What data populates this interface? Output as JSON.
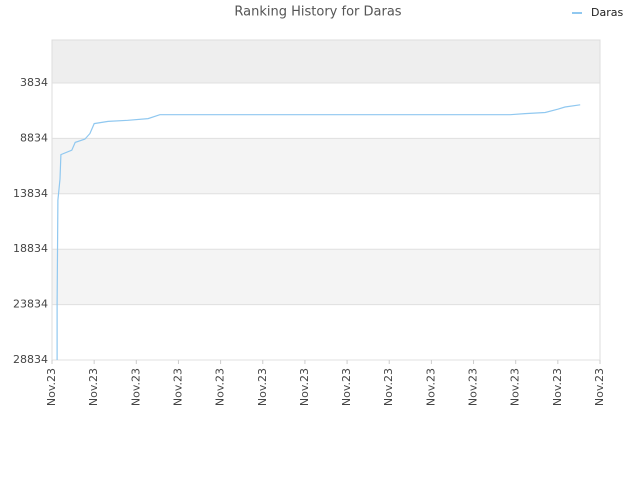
{
  "chart_data": {
    "type": "line",
    "title": "Ranking History for Daras",
    "x": [
      0.12,
      0.12,
      0.14,
      0.19,
      0.21,
      0.47,
      0.55,
      0.78,
      0.9,
      1.0,
      1.33,
      1.8,
      2.28,
      2.56,
      10.87,
      11.22,
      11.7,
      12.0,
      12.17,
      12.53
    ],
    "series": [
      {
        "name": "Daras",
        "color": "#90c8f0",
        "values": [
          28834,
          23834,
          14400,
          12500,
          10300,
          9900,
          9200,
          8900,
          8400,
          7500,
          7300,
          7200,
          7050,
          6700,
          6700,
          6600,
          6500,
          6200,
          6000,
          5800
        ]
      }
    ],
    "ylim": [
      28834,
      -46
    ],
    "yticks": [
      3834,
      8834,
      13834,
      18834,
      23834,
      28834
    ],
    "xlim": [
      0,
      13
    ],
    "xticks": [
      {
        "value": 0,
        "label": "Nov.23"
      },
      {
        "value": 1,
        "label": "Nov.23"
      },
      {
        "value": 2,
        "label": "Nov.23"
      },
      {
        "value": 3,
        "label": "Nov.23"
      },
      {
        "value": 4,
        "label": "Nov.23"
      },
      {
        "value": 5,
        "label": "Nov.23"
      },
      {
        "value": 6,
        "label": "Nov.23"
      },
      {
        "value": 7,
        "label": "Nov.23"
      },
      {
        "value": 8,
        "label": "Nov.23"
      },
      {
        "value": 9,
        "label": "Nov.23"
      },
      {
        "value": 10,
        "label": "Nov.23"
      },
      {
        "value": 11,
        "label": "Nov.23"
      },
      {
        "value": 12,
        "label": "Nov.23"
      },
      {
        "value": 13,
        "label": "Nov.23"
      }
    ],
    "grid": true,
    "legend": "top-right"
  }
}
